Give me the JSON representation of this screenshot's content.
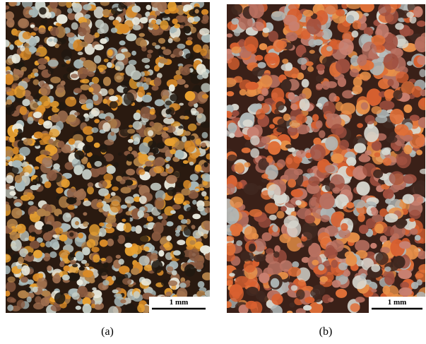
{
  "panels": [
    {
      "label": "(a)",
      "scale_bar": "1 mm"
    },
    {
      "label": "(b)",
      "scale_bar": "1 mm"
    }
  ]
}
